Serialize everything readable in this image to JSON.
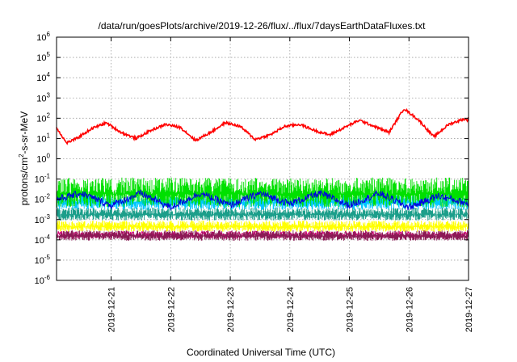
{
  "chart_data": {
    "type": "line",
    "title": "/data/run/goesPlots/archive/2019-12-26/flux/../flux/7daysEarthDataFluxes.txt",
    "xlabel": "Coordinated Universal Time (UTC)",
    "ylabel": {
      "main": "protons/cm",
      "sup": "2",
      "rest": "-s-sr-MeV"
    },
    "yscale": "log",
    "ylim_exp": [
      -6,
      6
    ],
    "y_ticks": [
      {
        "base": "10",
        "exp": "-6"
      },
      {
        "base": "10",
        "exp": "-5"
      },
      {
        "base": "10",
        "exp": "-4"
      },
      {
        "base": "10",
        "exp": "-3"
      },
      {
        "base": "10",
        "exp": "-2"
      },
      {
        "base": "10",
        "exp": "-1"
      },
      {
        "base": "10",
        "exp": "0"
      },
      {
        "base": "10",
        "exp": "1"
      },
      {
        "base": "10",
        "exp": "2"
      },
      {
        "base": "10",
        "exp": "3"
      },
      {
        "base": "10",
        "exp": "4"
      },
      {
        "base": "10",
        "exp": "5"
      },
      {
        "base": "10",
        "exp": "6"
      }
    ],
    "x_ticks": [
      "2019-12-21",
      "2019-12-22",
      "2019-12-23",
      "2019-12-24",
      "2019-12-25",
      "2019-12-26",
      "2019-12-27"
    ],
    "xlim": [
      "2019-12-20T02:00",
      "2019-12-27T00:00"
    ],
    "grid": true,
    "series": [
      {
        "color": "#d60078",
        "style": "noisy",
        "x": [
          "2019-12-20T02:00",
          "2019-12-21T00:00",
          "2019-12-22T00:00",
          "2019-12-23T00:00",
          "2019-12-24T00:00",
          "2019-12-25T00:00",
          "2019-12-26T00:00",
          "2019-12-27T00:00"
        ],
        "y": [
          0.00018,
          0.00018,
          0.00018,
          0.00018,
          0.00018,
          0.00018,
          0.00018,
          0.00018
        ]
      },
      {
        "color": "#8b1a55",
        "style": "band",
        "x": [
          "2019-12-20T02:00",
          "2019-12-27T00:00"
        ],
        "y_low": [
          9e-05,
          9e-05
        ],
        "y_high": [
          0.0003,
          0.0003
        ]
      },
      {
        "color": "#ffff00",
        "style": "band",
        "x": [
          "2019-12-20T02:00",
          "2019-12-27T00:00"
        ],
        "y_low": [
          0.00025,
          0.00025
        ],
        "y_high": [
          0.0009,
          0.0009
        ]
      },
      {
        "color": "#1b9e8a",
        "style": "band",
        "x": [
          "2019-12-20T02:00",
          "2019-12-27T00:00"
        ],
        "y_low": [
          0.0009,
          0.0009
        ],
        "y_high": [
          0.004,
          0.004
        ]
      },
      {
        "color": "#00c8ff",
        "style": "band",
        "x": [
          "2019-12-20T02:00",
          "2019-12-27T00:00"
        ],
        "y_low": [
          0.003,
          0.003
        ],
        "y_high": [
          0.02,
          0.02
        ]
      },
      {
        "color": "#00e000",
        "style": "band",
        "x": [
          "2019-12-20T02:00",
          "2019-12-27T00:00"
        ],
        "y_low": [
          0.004,
          0.004
        ],
        "y_high": [
          0.12,
          0.12
        ]
      },
      {
        "color": "#0000e0",
        "style": "noisy",
        "x": [
          "2019-12-20T02:00",
          "2019-12-20T12:00",
          "2019-12-21T00:00",
          "2019-12-21T12:00",
          "2019-12-22T00:00",
          "2019-12-22T12:00",
          "2019-12-23T00:00",
          "2019-12-23T12:00",
          "2019-12-24T00:00",
          "2019-12-24T12:00",
          "2019-12-25T00:00",
          "2019-12-25T12:00",
          "2019-12-26T00:00",
          "2019-12-26T12:00",
          "2019-12-27T00:00"
        ],
        "y": [
          0.01,
          0.02,
          0.005,
          0.02,
          0.004,
          0.02,
          0.005,
          0.02,
          0.006,
          0.02,
          0.005,
          0.02,
          0.004,
          0.015,
          0.006
        ]
      },
      {
        "color": "#ff0000",
        "style": "line",
        "x": [
          "2019-12-20T02:00",
          "2019-12-20T06:00",
          "2019-12-20T10:00",
          "2019-12-20T16:00",
          "2019-12-20T22:00",
          "2019-12-21T04:00",
          "2019-12-21T10:00",
          "2019-12-21T16:00",
          "2019-12-21T22:00",
          "2019-12-22T04:00",
          "2019-12-22T10:00",
          "2019-12-22T16:00",
          "2019-12-22T22:00",
          "2019-12-23T04:00",
          "2019-12-23T10:00",
          "2019-12-23T16:00",
          "2019-12-23T22:00",
          "2019-12-24T04:00",
          "2019-12-24T10:00",
          "2019-12-24T16:00",
          "2019-12-24T22:00",
          "2019-12-25T04:00",
          "2019-12-25T10:00",
          "2019-12-25T16:00",
          "2019-12-25T22:00",
          "2019-12-26T04:00",
          "2019-12-26T10:00",
          "2019-12-26T16:00",
          "2019-12-26T22:00",
          "2019-12-27T00:00"
        ],
        "y": [
          35,
          6,
          10,
          30,
          60,
          20,
          10,
          25,
          50,
          35,
          8,
          20,
          60,
          40,
          9,
          15,
          40,
          50,
          25,
          15,
          35,
          80,
          40,
          20,
          300,
          80,
          12,
          50,
          90,
          80
        ]
      }
    ]
  }
}
